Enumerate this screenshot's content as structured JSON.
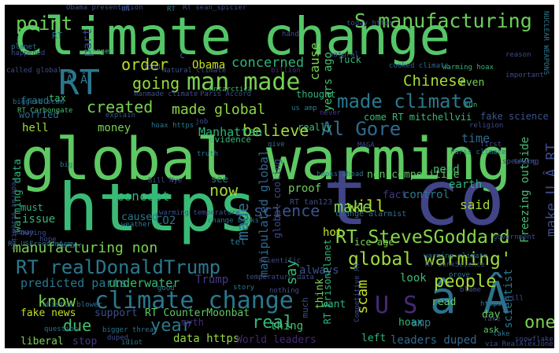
{
  "background": "#000000",
  "frame": "#ffffff",
  "words": [
    {
      "text": "climate change",
      "color": "#55c667"
    },
    {
      "text": "global warming",
      "color": "#5ec962"
    },
    {
      "text": "https",
      "color": "#3aba76"
    },
    {
      "text": "t co",
      "color": "#414487"
    },
    {
      "text": "RT",
      "color": "#2a788e"
    },
    {
      "text": "man made",
      "color": "#7ad151"
    },
    {
      "text": "S manufacturing",
      "color": "#6ccd5a"
    },
    {
      "text": "going",
      "color": "#95d840"
    },
    {
      "text": "made climate",
      "color": "#2a788e"
    },
    {
      "text": "Al Gore",
      "color": "#31688e"
    },
    {
      "text": "RT SteveSGoddard",
      "color": "#86d549"
    },
    {
      "text": "RT realDonaldTrump",
      "color": "#2a788e"
    },
    {
      "text": "global warming'",
      "color": "#9fda3a"
    },
    {
      "text": "climate change",
      "color": "#2a788e"
    },
    {
      "text": "point",
      "color": "#6ccd5a"
    },
    {
      "text": "â Â",
      "color": "#2c728e"
    },
    {
      "text": "U S",
      "color": "#482878"
    },
    {
      "text": "made global",
      "color": "#8bd646"
    },
    {
      "text": "believe",
      "color": "#9fda3a"
    },
    {
      "text": "Chinese",
      "color": "#a8db34"
    },
    {
      "text": "science",
      "color": "#3b528b"
    },
    {
      "text": "created",
      "color": "#7ad151"
    },
    {
      "text": "order",
      "color": "#b5de2b"
    },
    {
      "text": "Obama",
      "color": "#c5e021"
    },
    {
      "text": "concerned",
      "color": "#2fb47c"
    },
    {
      "text": "people",
      "color": "#a5db36"
    },
    {
      "text": "know",
      "color": "#7ad151"
    },
    {
      "text": "year",
      "color": "#2a788e"
    },
    {
      "text": "real",
      "color": "#35b779"
    },
    {
      "text": "due",
      "color": "#44bf70"
    },
    {
      "text": "one",
      "color": "#7ad151"
    },
    {
      "text": "concept",
      "color": "#2fb47c"
    },
    {
      "text": "now",
      "color": "#a2da37"
    },
    {
      "text": "will",
      "color": "#c2df23"
    },
    {
      "text": "make",
      "color": "#7ad151"
    },
    {
      "text": "say",
      "color": "#37b878"
    },
    {
      "text": "scam",
      "color": "#c5e021"
    },
    {
      "text": "manufacturing non",
      "color": "#7ad151"
    },
    {
      "text": "made",
      "color": "#2e6e8e"
    },
    {
      "text": "predicted parts",
      "color": "#2a788e"
    },
    {
      "text": "underwater",
      "color": "#3bbb75"
    },
    {
      "text": "Trump",
      "color": "#443a83"
    },
    {
      "text": "support",
      "color": "#3e4c8a"
    },
    {
      "text": "RT CounterMoonbat",
      "color": "#5ec962"
    },
    {
      "text": "fake news",
      "color": "#c2df23"
    },
    {
      "text": "liberal",
      "color": "#7ad151"
    },
    {
      "text": "stop",
      "color": "#443983"
    },
    {
      "text": "myth",
      "color": "#472d7b"
    },
    {
      "text": "data https",
      "color": "#95d840"
    },
    {
      "text": "World leaders",
      "color": "#482878"
    },
    {
      "text": "leaders duped",
      "color": "#31688e"
    },
    {
      "text": "left",
      "color": "#2fb47c"
    },
    {
      "text": "ask",
      "color": "#5ec962"
    },
    {
      "text": "thing",
      "color": "#44bf70"
    },
    {
      "text": "want",
      "color": "#2fb47c"
    },
    {
      "text": "hoax",
      "color": "#35b779"
    },
    {
      "text": "amp",
      "color": "#2a788e"
    },
    {
      "text": "look",
      "color": "#3aba76"
    },
    {
      "text": "read",
      "color": "#6ccd5a"
    },
    {
      "text": "day",
      "color": "#6ccd5a"
    },
    {
      "text": "scientist",
      "color": "#2a788e"
    },
    {
      "text": "said",
      "color": "#a5db36"
    },
    {
      "text": "need",
      "color": "#44bf70"
    },
    {
      "text": "earth",
      "color": "#2fb47c"
    },
    {
      "text": "time",
      "color": "#31688e"
    },
    {
      "text": "Manhattan",
      "color": "#2fb47c"
    },
    {
      "text": "hell",
      "color": "#a2da37"
    },
    {
      "text": "money",
      "color": "#7ad151"
    },
    {
      "text": "tax",
      "color": "#44bf70"
    },
    {
      "text": "fraud",
      "color": "#2c728e"
    },
    {
      "text": "worried",
      "color": "#31688e"
    },
    {
      "text": "thought",
      "color": "#2fb47c"
    },
    {
      "text": "really",
      "color": "#3bbb75"
    },
    {
      "text": "hot",
      "color": "#c5e021"
    },
    {
      "text": "always",
      "color": "#3b528b"
    },
    {
      "text": "issue",
      "color": "#35b779"
    },
    {
      "text": "must",
      "color": "#2fb47c"
    },
    {
      "text": "CO2",
      "color": "#2c728e"
    },
    {
      "text": "control",
      "color": "#2a788e"
    },
    {
      "text": "fact",
      "color": "#443983"
    },
    {
      "text": "proof",
      "color": "#6ccd5a"
    },
    {
      "text": "even",
      "color": "#7ad151"
    },
    {
      "text": "cause",
      "color": "#7ad151"
    },
    {
      "text": "come RT mitchellvii",
      "color": "#3aba76"
    },
    {
      "text": "non competitive",
      "color": "#5ec962"
    },
    {
      "text": "caused",
      "color": "#2a788e"
    },
    {
      "text": "RT PrisonPlanet",
      "color": "#2fb47c"
    },
    {
      "text": "RT tan123",
      "color": "#3e4c8a"
    },
    {
      "text": "Ã Â",
      "color": "#2a788e"
    },
    {
      "text": "fuck",
      "color": "#2fb47c"
    },
    {
      "text": "years ago",
      "color": "#44bf70"
    },
    {
      "text": "part",
      "color": "#3e4c8a"
    },
    {
      "text": "see",
      "color": "#2a788e"
    },
    {
      "text": "tel",
      "color": "#2a788e"
    },
    {
      "text": "ice age",
      "color": "#7ad151"
    },
    {
      "text": "fake science",
      "color": "#3b528b"
    },
    {
      "text": "make U Â RT",
      "color": "#3e4c8a"
    },
    {
      "text": "Freezing outside",
      "color": "#44bf70"
    },
    {
      "text": "warming data",
      "color": "#2fb47c"
    },
    {
      "text": "manipulated global",
      "color": "#31688e"
    },
    {
      "text": "global cooling",
      "color": "#3e4c8a"
    },
    {
      "text": "think",
      "color": "#7ad151"
    },
    {
      "text": "much",
      "color": "#3e4c8a"
    },
    {
      "text": "Antarctica",
      "color": "#44bf70"
    },
    {
      "text": "RT",
      "color": "#2a788e"
    },
    {
      "text": "Natural climate",
      "color": "#3b528b"
    },
    {
      "text": "billion",
      "color": "#482878"
    },
    {
      "text": "natural",
      "color": "#3e4c8a"
    },
    {
      "text": "warming hoax",
      "color": "#2fb47c"
    },
    {
      "text": "cooked climate",
      "color": "#31688e"
    },
    {
      "text": "RT sean_spicier",
      "color": "#3e4c8a"
    },
    {
      "text": "UN",
      "color": "#3b528b"
    },
    {
      "text": "today https",
      "color": "#3e4c8a"
    },
    {
      "text": "planet",
      "color": "#2c728e"
    },
    {
      "text": "changed",
      "color": "#44bf70"
    },
    {
      "text": "food",
      "color": "#3e4c8a"
    },
    {
      "text": "called global",
      "color": "#3e4c8a"
    },
    {
      "text": "manmade climate",
      "color": "#3e4c8a"
    },
    {
      "text": "Paris Accord",
      "color": "#3e4c8a"
    },
    {
      "text": "biggest scam",
      "color": "#2c728e"
    },
    {
      "text": "RT Carbongate",
      "color": "#44bf70"
    },
    {
      "text": "explain",
      "color": "#3b528b"
    },
    {
      "text": "hoax https",
      "color": "#2a788e"
    },
    {
      "text": "job",
      "color": "#3e4c8a"
    },
    {
      "text": "us amp",
      "color": "#2a788e"
    },
    {
      "text": "never",
      "color": "#443983"
    },
    {
      "text": "evidence",
      "color": "#35b779"
    },
    {
      "text": "give",
      "color": "#2c728e"
    },
    {
      "text": "MAGA",
      "color": "#3e4c8a"
    },
    {
      "text": "truth",
      "color": "#2a788e"
    },
    {
      "text": "Paris climate",
      "color": "#2a788e"
    },
    {
      "text": "religion",
      "color": "#3e4c8a"
    },
    {
      "text": "sun",
      "color": "#44bf70"
    },
    {
      "text": "important",
      "color": "#3e4c8a"
    },
    {
      "text": "trying",
      "color": "#3e4c8a"
    },
    {
      "text": "warming temperature",
      "color": "#3e4c8a"
    },
    {
      "text": "change books",
      "color": "#2c728e"
    },
    {
      "text": "books ahead",
      "color": "#2a788e"
    },
    {
      "text": "lie",
      "color": "#3e4c8a"
    },
    {
      "text": "Bill Nye",
      "color": "#3e4c8a"
    },
    {
      "text": "buying",
      "color": "#3b528b"
    },
    {
      "text": "weather",
      "color": "#2a788e"
    },
    {
      "text": "human",
      "color": "#3e4c8a"
    },
    {
      "text": "hope",
      "color": "#3e4c8a"
    },
    {
      "text": "RT USFreedomArmy",
      "color": "#2c728e"
    },
    {
      "text": "denier",
      "color": "#2a788e"
    },
    {
      "text": "change alarmist",
      "color": "#2c728e"
    },
    {
      "text": "government",
      "color": "#3e4c8a"
    },
    {
      "text": "RT JunkScience",
      "color": "#3e4c8a"
    },
    {
      "text": "warming climate",
      "color": "#2c728e"
    },
    {
      "text": "scientific",
      "color": "#3e4c8a"
    },
    {
      "text": "temperature data",
      "color": "#3e4c8a"
    },
    {
      "text": "nothing",
      "color": "#3e4c8a"
    },
    {
      "text": "story",
      "color": "#2a788e"
    },
    {
      "text": "good",
      "color": "#2a788e"
    },
    {
      "text": "whistle blower",
      "color": "#2c728e"
    },
    {
      "text": "question",
      "color": "#2c728e"
    },
    {
      "text": "bigger threat",
      "color": "#2c728e"
    },
    {
      "text": "duped",
      "color": "#3e4c8a"
    },
    {
      "text": "idiot",
      "color": "#2c728e"
    },
    {
      "text": "blame",
      "color": "#3e4c8a"
    },
    {
      "text": "put",
      "color": "#2a788e"
    },
    {
      "text": "still",
      "color": "#3e4c8a"
    },
    {
      "text": "take",
      "color": "#2c728e"
    },
    {
      "text": "fake",
      "color": "#3e4c8a"
    },
    {
      "text": "snowflake",
      "color": "#3e4c8a"
    },
    {
      "text": "NUCLEAR WEAPONS",
      "color": "#2a788e"
    },
    {
      "text": "RT",
      "color": "#2a788e"
    },
    {
      "text": "Competitive RT",
      "color": "#3e4c8a"
    },
    {
      "text": "prove",
      "color": "#2a788e"
    },
    {
      "text": "federal scientist",
      "color": "#3e4c8a"
    },
    {
      "text": "Obama presentation",
      "color": "#3e4c8a"
    },
    {
      "text": "first",
      "color": "#3e4c8a"
    },
    {
      "text": "speaking",
      "color": "#3e4c8a"
    },
    {
      "text": "big",
      "color": "#2a788e"
    },
    {
      "text": "https",
      "color": "#2c728e"
    },
    {
      "text": "via RealAlexJones",
      "color": "#3e4c8a"
    },
    {
      "text": "happened",
      "color": "#3e4c8a"
    },
    {
      "text": "hand",
      "color": "#3e4c8a"
    },
    {
      "text": "reason",
      "color": "#3e4c8a"
    },
    {
      "text": "c",
      "color": "#3e4c8a"
    }
  ]
}
